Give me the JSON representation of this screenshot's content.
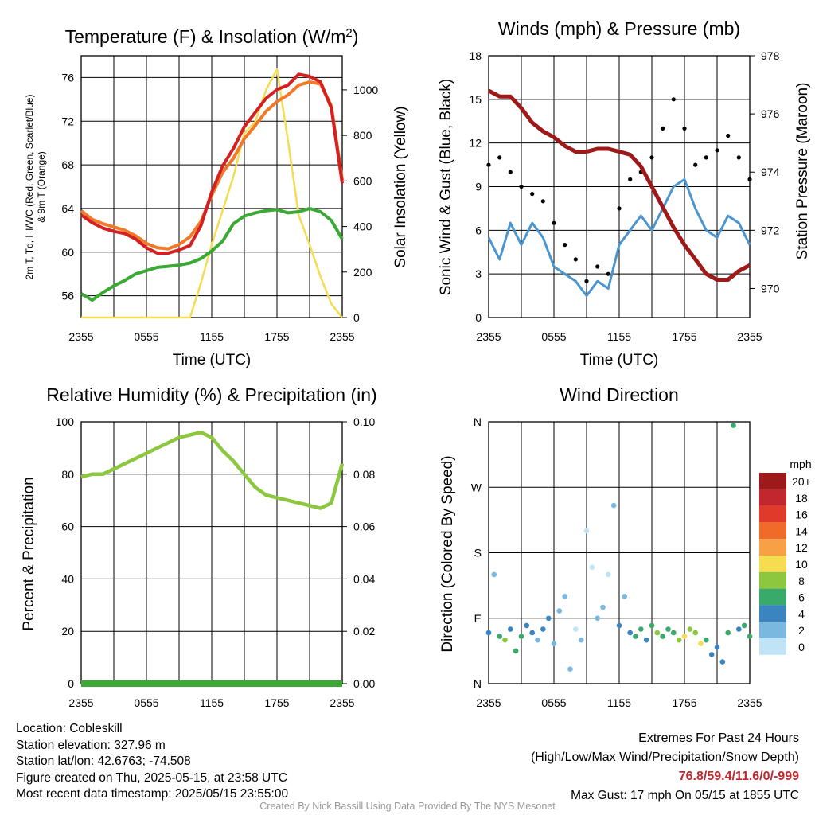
{
  "colors": {
    "temp": "#d42020",
    "dewpoint": "#3aaa35",
    "heat_index": "#d42020",
    "temp9m": "#f07a2a",
    "insolation": "#f5dc50",
    "wind": "#4b95d0",
    "gust": "#000000",
    "pressure": "#9e1a1a",
    "rh": "#8dc63f",
    "precip": "#3aaa35"
  },
  "charts": {
    "temperature": {
      "title": "Temperature (F) & Insolation (W/m²)",
      "ylabel_line1": "2m T, Td, HI/WC (Red, Green, Scarlet/Blue)",
      "ylabel_line2": "& 9m T (Orange)",
      "y2label": "Solar Insolation (Yellow)",
      "xlabel": "Time (UTC)",
      "x_ticks": [
        "2355",
        "0555",
        "1155",
        "1755",
        "2355"
      ],
      "y_ticks": [
        "56",
        "60",
        "64",
        "68",
        "72",
        "76"
      ],
      "y2_ticks": [
        "0",
        "200",
        "400",
        "600",
        "800",
        "1000"
      ]
    },
    "winds": {
      "title": "Winds (mph) & Pressure (mb)",
      "ylabel": "Sonic Wind & Gust (Blue, Black)",
      "y2label": "Station Pressure (Maroon)",
      "xlabel": "Time (UTC)",
      "x_ticks": [
        "2355",
        "0555",
        "1155",
        "1755",
        "2355"
      ],
      "y_ticks": [
        "0",
        "3",
        "6",
        "9",
        "12",
        "15",
        "18"
      ],
      "y2_ticks": [
        "970",
        "972",
        "974",
        "976",
        "978"
      ]
    },
    "humidity": {
      "title": "Relative Humidity (%) & Precipitation (in)",
      "ylabel": "Percent & Precipitation",
      "x_ticks": [
        "2355",
        "0555",
        "1155",
        "1755",
        "2355"
      ],
      "y_ticks": [
        "0",
        "20",
        "40",
        "60",
        "80",
        "100"
      ],
      "y2_ticks": [
        "0.00",
        "0.02",
        "0.04",
        "0.06",
        "0.08",
        "0.10"
      ]
    },
    "direction": {
      "title": "Wind Direction",
      "ylabel": "Direction (Colored By Speed)",
      "x_ticks": [
        "2355",
        "0555",
        "1155",
        "1755",
        "2355"
      ],
      "y_ticks": [
        "N",
        "E",
        "S",
        "W",
        "N"
      ],
      "legend_unit": "mph",
      "legend_labels": [
        "20+",
        "18",
        "16",
        "14",
        "12",
        "10",
        "8",
        "6",
        "4",
        "2",
        "0"
      ],
      "legend_colors": [
        "#9e1a1a",
        "#c1272d",
        "#e03a2a",
        "#f06a2a",
        "#f7a046",
        "#f5dc50",
        "#8dc63f",
        "#3aaa6a",
        "#3a85c0",
        "#7ab8e0",
        "#c0e4f5"
      ]
    }
  },
  "chart_data": [
    {
      "type": "line",
      "title": "Temperature (F) & Insolation (W/m²)",
      "xlabel": "Time (UTC)",
      "x": [
        0,
        1,
        2,
        3,
        4,
        5,
        6,
        7,
        8,
        9,
        10,
        11,
        12,
        13,
        14,
        15,
        16,
        17,
        18,
        19,
        20,
        21,
        22,
        23,
        24
      ],
      "ylim": [
        54,
        78
      ],
      "y2lim": [
        0,
        1150
      ],
      "series": [
        {
          "key": "t9",
          "axis": "y",
          "values": [
            63.8,
            63.0,
            62.6,
            62.3,
            62.0,
            61.5,
            60.8,
            60.4,
            60.3,
            60.7,
            61.4,
            62.8,
            65.2,
            67.3,
            68.6,
            70.4,
            71.6,
            72.9,
            73.8,
            74.4,
            75.3,
            75.6,
            75.4,
            73.4,
            66.6
          ]
        },
        {
          "key": "t",
          "axis": "y",
          "values": [
            63.4,
            62.7,
            62.2,
            61.9,
            61.7,
            61.2,
            60.4,
            59.9,
            59.9,
            60.2,
            60.6,
            62.4,
            65.5,
            67.9,
            69.5,
            71.5,
            72.8,
            74.1,
            74.9,
            75.3,
            76.3,
            76.1,
            75.6,
            73.2,
            66.3
          ]
        },
        {
          "key": "td",
          "axis": "y",
          "values": [
            56.2,
            55.6,
            56.3,
            56.9,
            57.4,
            58.0,
            58.3,
            58.6,
            58.7,
            58.8,
            59.0,
            59.4,
            60.1,
            61.0,
            62.6,
            63.3,
            63.6,
            63.8,
            63.9,
            63.6,
            63.7,
            64.0,
            63.7,
            62.9,
            61.2
          ]
        },
        {
          "key": "sol",
          "axis": "y2",
          "values": [
            0,
            0,
            0,
            0,
            0,
            0,
            0,
            0,
            0,
            0,
            0,
            150,
            320,
            470,
            620,
            810,
            860,
            1000,
            1090,
            780,
            450,
            320,
            180,
            60,
            0
          ]
        }
      ]
    },
    {
      "type": "line",
      "title": "Winds (mph) & Pressure (mb)",
      "xlabel": "Time (UTC)",
      "x": [
        0,
        1,
        2,
        3,
        4,
        5,
        6,
        7,
        8,
        9,
        10,
        11,
        12,
        13,
        14,
        15,
        16,
        17,
        18,
        19,
        20,
        21,
        22,
        23,
        24
      ],
      "ylim": [
        0,
        18
      ],
      "y2lim": [
        969,
        978
      ],
      "series": [
        {
          "key": "wind",
          "axis": "y",
          "values": [
            5.5,
            4.0,
            6.5,
            5.0,
            6.5,
            5.5,
            3.5,
            3.0,
            2.5,
            1.5,
            2.5,
            2.0,
            5.0,
            6.0,
            7.0,
            6.0,
            7.5,
            9.0,
            9.5,
            7.5,
            6.0,
            5.5,
            7.0,
            6.5,
            5.0
          ]
        },
        {
          "key": "gust",
          "axis": "y",
          "values": [
            10.5,
            11.0,
            10.0,
            9.0,
            8.5,
            8.0,
            6.5,
            5.0,
            4.0,
            2.5,
            3.5,
            3.0,
            7.5,
            9.5,
            10.0,
            11.0,
            13.0,
            15.0,
            13.0,
            10.5,
            11.0,
            11.5,
            12.5,
            11.0,
            9.5
          ]
        },
        {
          "key": "pres",
          "axis": "y2",
          "values": [
            976.8,
            976.6,
            976.6,
            976.2,
            975.7,
            975.4,
            975.2,
            974.9,
            974.7,
            974.7,
            974.8,
            974.8,
            974.7,
            974.6,
            974.2,
            973.5,
            972.8,
            972.1,
            971.5,
            971.0,
            970.5,
            970.3,
            970.3,
            970.6,
            970.8
          ]
        }
      ]
    },
    {
      "type": "line",
      "title": "Relative Humidity (%) & Precipitation (in)",
      "x": [
        0,
        1,
        2,
        3,
        4,
        5,
        6,
        7,
        8,
        9,
        10,
        11,
        12,
        13,
        14,
        15,
        16,
        17,
        18,
        19,
        20,
        21,
        22,
        23,
        24
      ],
      "ylim": [
        0,
        100
      ],
      "y2lim": [
        0,
        0.1
      ],
      "series": [
        {
          "key": "rh",
          "axis": "y",
          "values": [
            79,
            80,
            80,
            82,
            84,
            86,
            88,
            90,
            92,
            94,
            95,
            96,
            94,
            89,
            85,
            80,
            75,
            72,
            71,
            70,
            69,
            68,
            67,
            69,
            84
          ]
        },
        {
          "key": "precip",
          "axis": "y2",
          "values": [
            0,
            0,
            0,
            0,
            0,
            0,
            0,
            0,
            0,
            0,
            0,
            0,
            0,
            0,
            0,
            0,
            0,
            0,
            0,
            0,
            0,
            0,
            0,
            0,
            0
          ]
        }
      ]
    },
    {
      "type": "scatter",
      "title": "Wind Direction",
      "ylabel": "Direction (Colored By Speed)",
      "y_axis": "degrees, N (0) at bottom to N (360) at top",
      "x": [
        0,
        0.5,
        1,
        1.5,
        2,
        2.5,
        3,
        3.5,
        4,
        4.5,
        5,
        5.5,
        6,
        6.5,
        7,
        7.5,
        8,
        8.5,
        9,
        9.5,
        10,
        10.5,
        11,
        11.5,
        12,
        12.5,
        13,
        13.5,
        14,
        14.5,
        15,
        15.5,
        16,
        16.5,
        17,
        17.5,
        18,
        18.5,
        19,
        19.5,
        20,
        20.5,
        21,
        21.5,
        22,
        22.5,
        23,
        23.5,
        24
      ],
      "y": [
        70,
        150,
        65,
        60,
        75,
        45,
        65,
        80,
        70,
        60,
        75,
        90,
        55,
        100,
        120,
        20,
        75,
        60,
        210,
        160,
        90,
        105,
        150,
        245,
        80,
        120,
        70,
        65,
        75,
        60,
        80,
        70,
        65,
        75,
        70,
        60,
        65,
        75,
        70,
        55,
        60,
        40,
        50,
        30,
        70,
        355,
        75,
        80,
        65
      ],
      "speed": [
        5,
        3,
        6,
        8,
        4,
        7,
        6,
        5,
        4,
        3,
        5,
        4,
        3,
        2,
        2,
        3,
        1,
        2,
        1,
        1,
        2,
        2,
        1,
        3,
        4,
        3,
        5,
        6,
        7,
        5,
        6,
        8,
        7,
        6,
        7,
        9,
        10,
        8,
        9,
        11,
        6,
        5,
        4,
        5,
        7,
        6,
        5,
        7,
        6
      ]
    }
  ],
  "info": {
    "location": "Location: Cobleskill",
    "elevation": "Station elevation: 327.96 m",
    "latlon": "Station lat/lon: 42.6763; -74.508",
    "created": "Figure created on Thu, 2025-05-15, at 23:58 UTC",
    "recent": "Most recent data timestamp: 2025/05/15 23:55:00"
  },
  "extremes": {
    "title": "Extremes For Past 24 Hours",
    "subtitle": "(High/Low/Max Wind/Precipitation/Snow Depth)",
    "values": "76.8/59.4/11.6/0/-999",
    "gust": "Max Gust: 17 mph On 05/15 at 1855 UTC"
  },
  "credit": "Created By Nick Bassill Using Data Provided By The NYS Mesonet"
}
